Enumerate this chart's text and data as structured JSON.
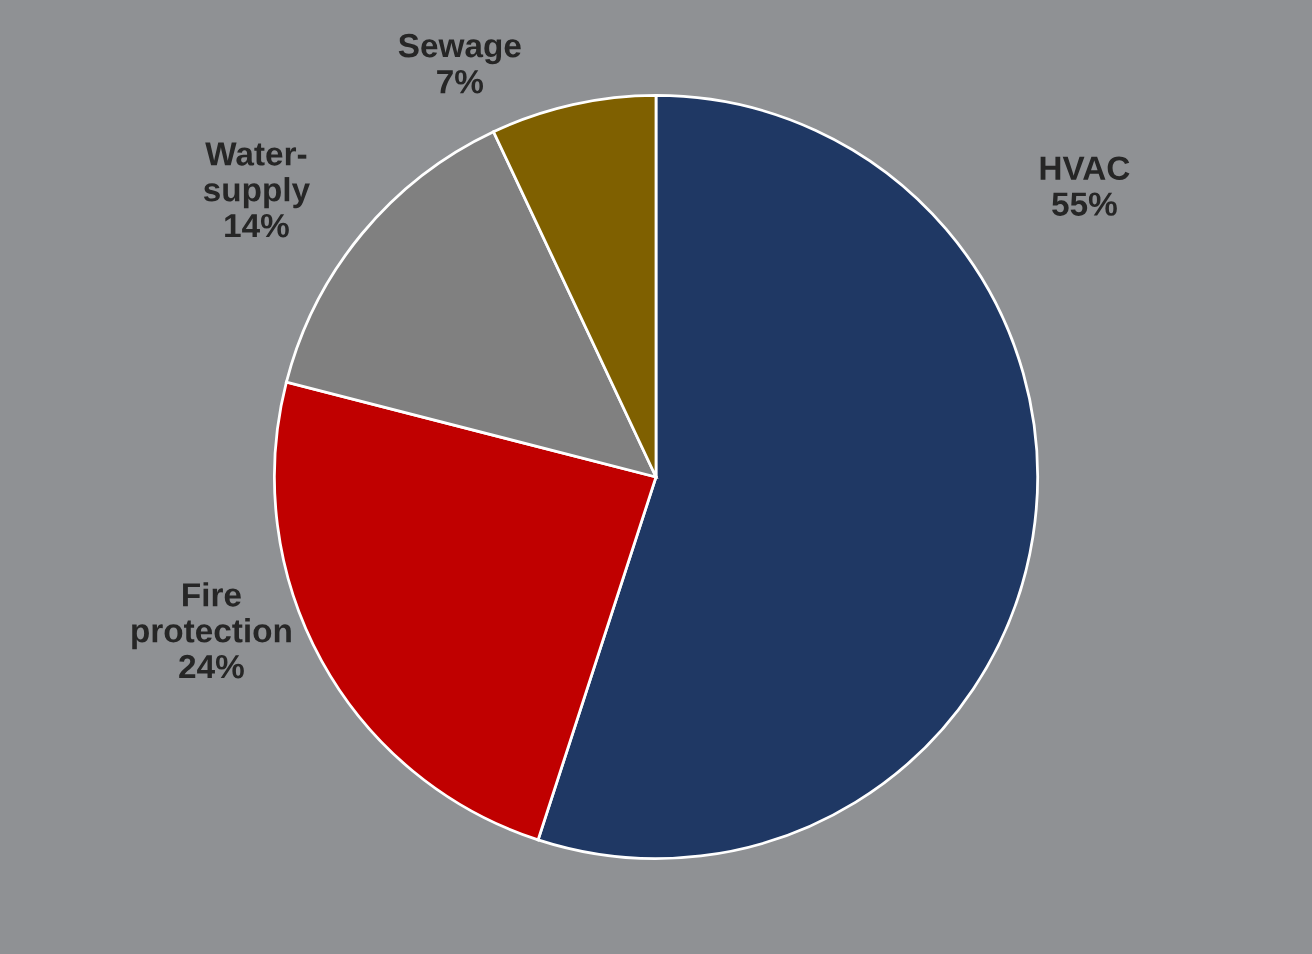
{
  "chart_data": {
    "type": "pie",
    "categories": [
      "HVAC",
      "Fire protection",
      "Water-supply",
      "Sewage"
    ],
    "values": [
      55,
      24,
      14,
      7
    ],
    "colors": [
      "#1f3864",
      "#c00000",
      "#808080",
      "#7f6000"
    ],
    "value_labels": [
      "55%",
      "24%",
      "14%",
      "7%"
    ]
  }
}
